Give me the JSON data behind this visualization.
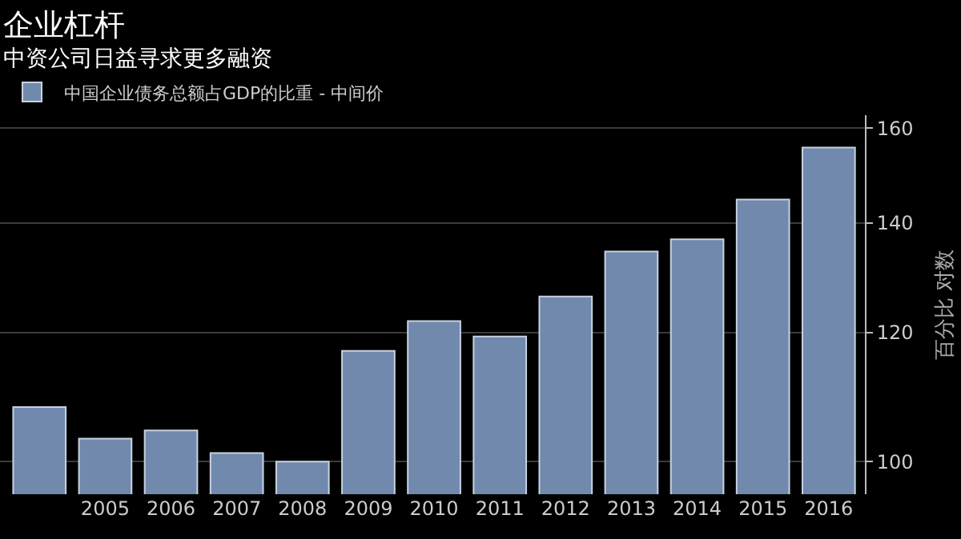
{
  "chart_data": {
    "type": "bar",
    "title": "企业杠杆",
    "subtitle": "中资公司日益寻求更多融资",
    "ylabel": "百分比 对数",
    "categories": [
      null,
      "2005",
      "2006",
      "2007",
      "2008",
      "2009",
      "2010",
      "2011",
      "2012",
      "2013",
      "2014",
      "2015",
      "2016"
    ],
    "series": [
      {
        "name": "中国企业债务总额占GDP的比重 - 中间价",
        "color": "#7189ad",
        "values": [
          108,
          103.3,
          104.5,
          101.2,
          100,
          116.9,
          121.9,
          119.3,
          126.2,
          134.5,
          136.8,
          144.7,
          155.7
        ]
      }
    ],
    "log": "y",
    "ylim": [
      95.5,
      163
    ],
    "yticks": [
      100,
      120,
      140,
      160
    ],
    "grid": "y",
    "legend": "top left"
  }
}
